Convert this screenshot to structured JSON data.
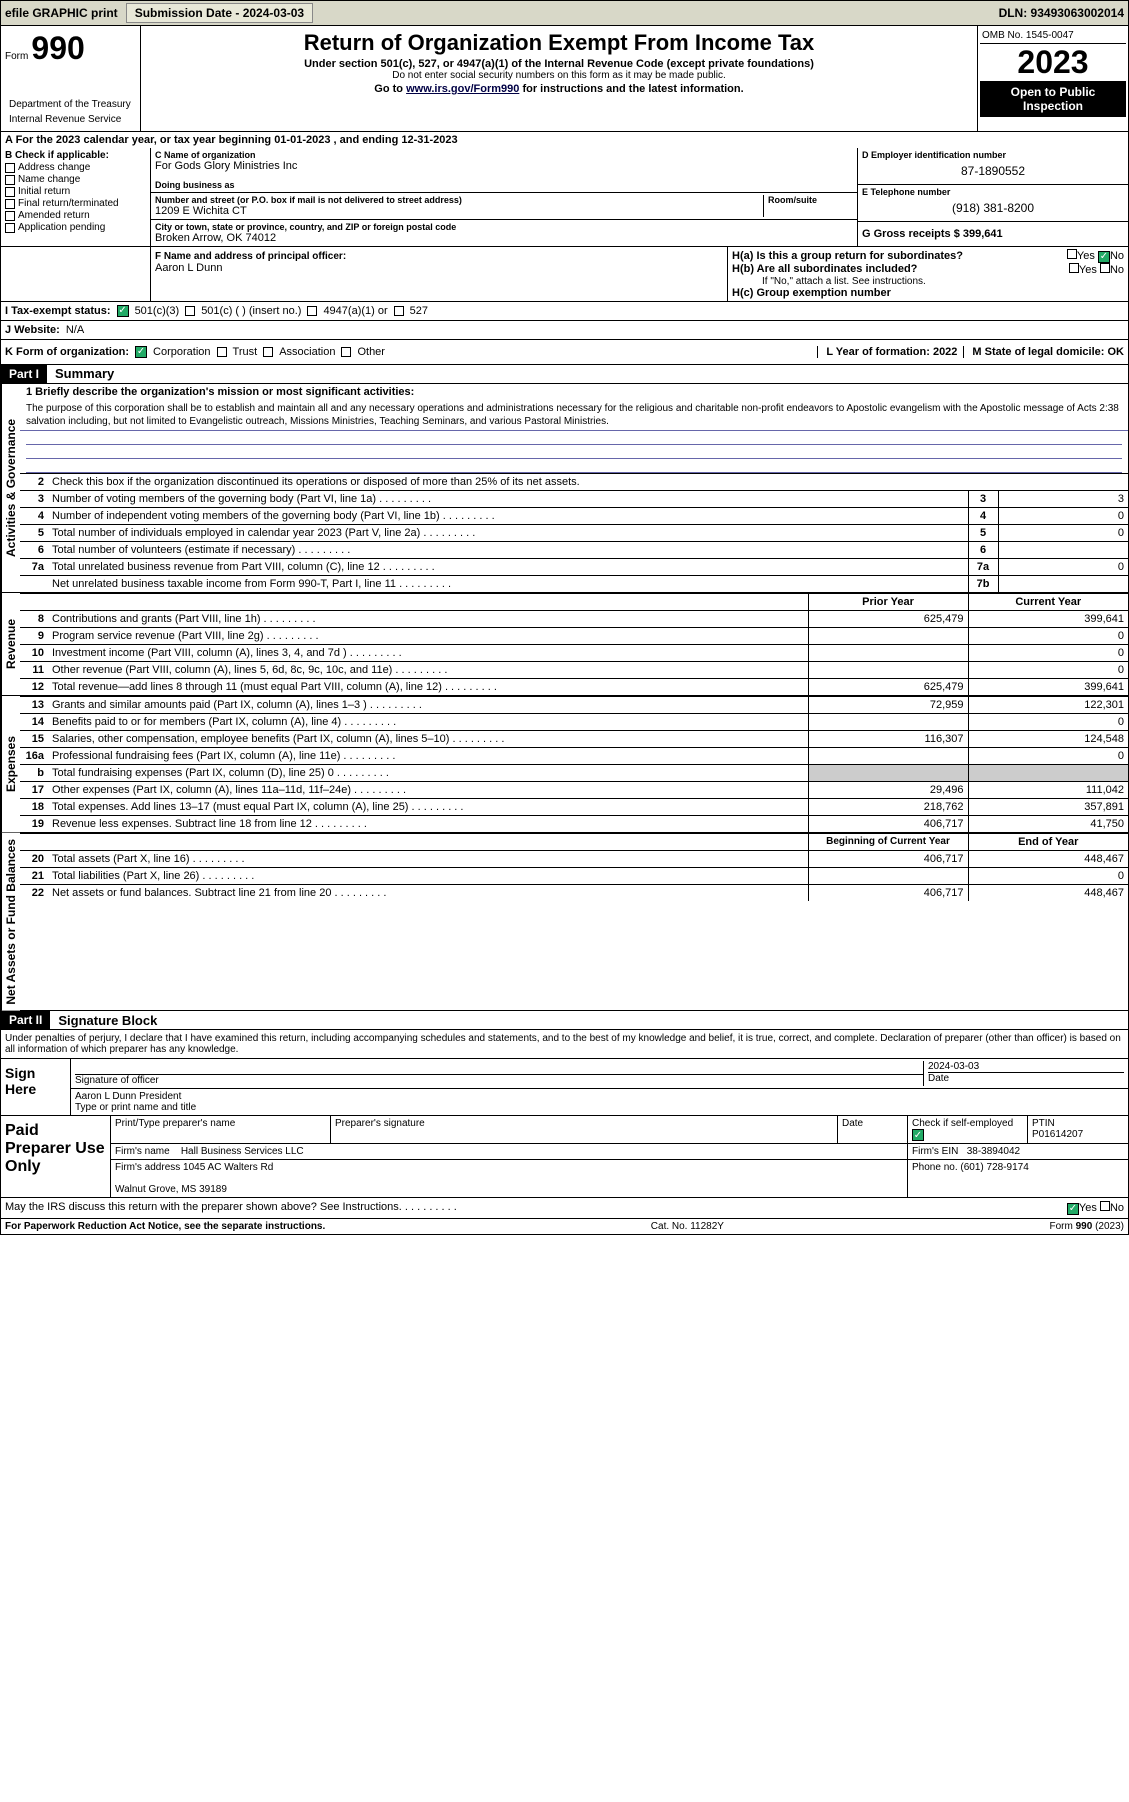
{
  "topbar": {
    "efile": "efile GRAPHIC print",
    "submission_label": "Submission Date - 2024-03-03",
    "dln": "DLN: 93493063002014"
  },
  "header": {
    "form_word": "Form",
    "form_num": "990",
    "title": "Return of Organization Exempt From Income Tax",
    "sub1": "Under section 501(c), 527, or 4947(a)(1) of the Internal Revenue Code (except private foundations)",
    "sub2": "Do not enter social security numbers on this form as it may be made public.",
    "sub3_pre": "Go to ",
    "sub3_link": "www.irs.gov/Form990",
    "sub3_post": " for instructions and the latest information.",
    "omb": "OMB No. 1545-0047",
    "year": "2023",
    "inspect": "Open to Public Inspection",
    "dept1": "Department of the Treasury",
    "dept2": "Internal Revenue Service"
  },
  "period": {
    "line_a": "A For the 2023 calendar year, or tax year beginning 01-01-2023    , and ending 12-31-2023"
  },
  "sectionB": {
    "label": "B Check if applicable:",
    "opts": [
      "Address change",
      "Name change",
      "Initial return",
      "Final return/terminated",
      "Amended return",
      "Application pending"
    ],
    "c_label": "C Name of organization",
    "c_name": "For Gods Glory Ministries Inc",
    "dba_label": "Doing business as",
    "addr_label": "Number and street (or P.O. box if mail is not delivered to street address)",
    "room_label": "Room/suite",
    "addr": "1209 E Wichita CT",
    "city_label": "City or town, state or province, country, and ZIP or foreign postal code",
    "city": "Broken Arrow, OK  74012",
    "d_label": "D Employer identification number",
    "d_val": "87-1890552",
    "e_label": "E Telephone number",
    "e_val": "(918) 381-8200",
    "g_label": "G Gross receipts $ 399,641"
  },
  "rowF": {
    "f_label": "F  Name and address of principal officer:",
    "f_name": "Aaron L Dunn",
    "ha_label": "H(a)  Is this a group return for subordinates?",
    "hb_label": "H(b)  Are all subordinates included?",
    "hb_note": "If \"No,\" attach a list. See instructions.",
    "hc_label": "H(c)  Group exemption number",
    "yes": "Yes",
    "no": "No"
  },
  "rowI": {
    "i_label": "I     Tax-exempt status:",
    "opt1": "501(c)(3)",
    "opt2": "501(c) (  ) (insert no.)",
    "opt3": "4947(a)(1) or",
    "opt4": "527"
  },
  "rowJ": {
    "label": "J     Website:",
    "val": "N/A"
  },
  "rowK": {
    "label": "K Form of organization:",
    "opts": [
      "Corporation",
      "Trust",
      "Association",
      "Other"
    ],
    "l_label": "L Year of formation: 2022",
    "m_label": "M State of legal domicile: OK"
  },
  "part1": {
    "hdr": "Part I",
    "title": "Summary",
    "side_gov": "Activities & Governance",
    "side_rev": "Revenue",
    "side_exp": "Expenses",
    "side_net": "Net Assets or Fund Balances",
    "q1_label": "1   Briefly describe the organization's mission or most significant activities:",
    "mission": "The purpose of this corporation shall be to establish and maintain all and any necessary operations and administrations necessary for the religious and charitable non-profit endeavors to Apostolic evangelism with the Apostolic message of Acts 2:38 salvation including, but not limited to Evangelistic outreach, Missions Ministries, Teaching Seminars, and various Pastoral Ministries.",
    "q2": "Check this box        if the organization discontinued its operations or disposed of more than 25% of its net assets.",
    "rows_gov": [
      {
        "n": "3",
        "t": "Number of voting members of the governing body (Part VI, line 1a)",
        "box": "3",
        "v": "3"
      },
      {
        "n": "4",
        "t": "Number of independent voting members of the governing body (Part VI, line 1b)",
        "box": "4",
        "v": "0"
      },
      {
        "n": "5",
        "t": "Total number of individuals employed in calendar year 2023 (Part V, line 2a)",
        "box": "5",
        "v": "0"
      },
      {
        "n": "6",
        "t": "Total number of volunteers (estimate if necessary)",
        "box": "6",
        "v": ""
      },
      {
        "n": "7a",
        "t": "Total unrelated business revenue from Part VIII, column (C), line 12",
        "box": "7a",
        "v": "0"
      },
      {
        "n": "",
        "t": "Net unrelated business taxable income from Form 990-T, Part I, line 11",
        "box": "7b",
        "v": ""
      }
    ],
    "col_prior": "Prior Year",
    "col_curr": "Current Year",
    "rows_rev": [
      {
        "n": "8",
        "t": "Contributions and grants (Part VIII, line 1h)",
        "p": "625,479",
        "c": "399,641"
      },
      {
        "n": "9",
        "t": "Program service revenue (Part VIII, line 2g)",
        "p": "",
        "c": "0"
      },
      {
        "n": "10",
        "t": "Investment income (Part VIII, column (A), lines 3, 4, and 7d )",
        "p": "",
        "c": "0"
      },
      {
        "n": "11",
        "t": "Other revenue (Part VIII, column (A), lines 5, 6d, 8c, 9c, 10c, and 11e)",
        "p": "",
        "c": "0"
      },
      {
        "n": "12",
        "t": "Total revenue—add lines 8 through 11 (must equal Part VIII, column (A), line 12)",
        "p": "625,479",
        "c": "399,641"
      }
    ],
    "rows_exp": [
      {
        "n": "13",
        "t": "Grants and similar amounts paid (Part IX, column (A), lines 1–3 )",
        "p": "72,959",
        "c": "122,301"
      },
      {
        "n": "14",
        "t": "Benefits paid to or for members (Part IX, column (A), line 4)",
        "p": "",
        "c": "0"
      },
      {
        "n": "15",
        "t": "Salaries, other compensation, employee benefits (Part IX, column (A), lines 5–10)",
        "p": "116,307",
        "c": "124,548"
      },
      {
        "n": "16a",
        "t": "Professional fundraising fees (Part IX, column (A), line 11e)",
        "p": "",
        "c": "0"
      },
      {
        "n": "b",
        "t": "Total fundraising expenses (Part IX, column (D), line 25) 0",
        "p": "grey",
        "c": "grey"
      },
      {
        "n": "17",
        "t": "Other expenses (Part IX, column (A), lines 11a–11d, 11f–24e)",
        "p": "29,496",
        "c": "111,042"
      },
      {
        "n": "18",
        "t": "Total expenses. Add lines 13–17 (must equal Part IX, column (A), line 25)",
        "p": "218,762",
        "c": "357,891"
      },
      {
        "n": "19",
        "t": "Revenue less expenses. Subtract line 18 from line 12",
        "p": "406,717",
        "c": "41,750"
      }
    ],
    "col_begin": "Beginning of Current Year",
    "col_end": "End of Year",
    "rows_net": [
      {
        "n": "20",
        "t": "Total assets (Part X, line 16)",
        "p": "406,717",
        "c": "448,467"
      },
      {
        "n": "21",
        "t": "Total liabilities (Part X, line 26)",
        "p": "",
        "c": "0"
      },
      {
        "n": "22",
        "t": "Net assets or fund balances. Subtract line 21 from line 20",
        "p": "406,717",
        "c": "448,467"
      }
    ]
  },
  "part2": {
    "hdr": "Part II",
    "title": "Signature Block",
    "perjury": "Under penalties of perjury, I declare that I have examined this return, including accompanying schedules and statements, and to the best of my knowledge and belief, it is true, correct, and complete. Declaration of preparer (other than officer) is based on all information of which preparer has any knowledge.",
    "sign_here": "Sign Here",
    "sig_officer": "Signature of officer",
    "sig_name": "Aaron L Dunn President",
    "sig_type": "Type or print name and title",
    "sig_date_label": "Date",
    "sig_date": "2024-03-03",
    "paid_prep": "Paid Preparer Use Only",
    "prep_name_label": "Print/Type preparer's name",
    "prep_sig_label": "Preparer's signature",
    "date_label": "Date",
    "check_label": "Check          if self-employed",
    "ptin_label": "PTIN",
    "ptin": "P01614207",
    "firm_name_label": "Firm's name",
    "firm_name": "Hall Business Services LLC",
    "firm_ein_label": "Firm's EIN",
    "firm_ein": "38-3894042",
    "firm_addr_label": "Firm's address",
    "firm_addr1": "1045 AC Walters Rd",
    "firm_addr2": "Walnut Grove, MS  39189",
    "phone_label": "Phone no.",
    "phone": "(601) 728-9174",
    "discuss": "May the IRS discuss this return with the preparer shown above? See Instructions."
  },
  "footer": {
    "left": "For Paperwork Reduction Act Notice, see the separate instructions.",
    "mid": "Cat. No. 11282Y",
    "right": "Form 990 (2023)"
  }
}
